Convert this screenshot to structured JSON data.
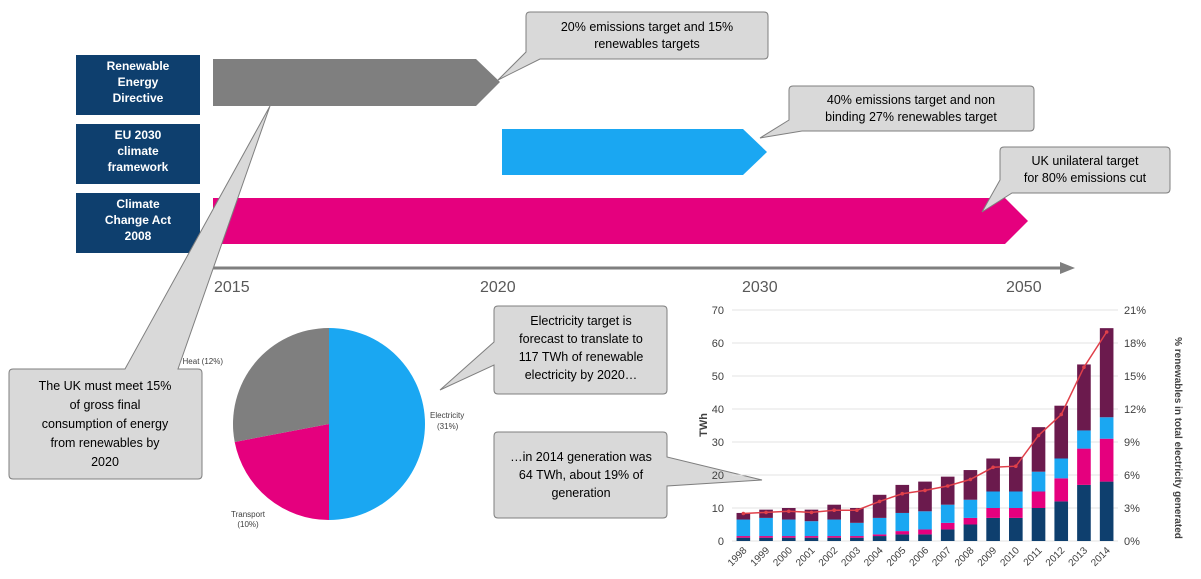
{
  "timeline": {
    "rows": [
      {
        "label": [
          "Renewable",
          "Energy",
          "Directive"
        ],
        "start_year": 2015,
        "end_year": 2020,
        "color": "#7f7f7f"
      },
      {
        "label": [
          "EU 2030",
          "climate",
          "framework"
        ],
        "start_year": 2020,
        "end_year": 2030,
        "color": "#1aa7f2"
      },
      {
        "label": [
          "Climate",
          "Change Act",
          "2008"
        ],
        "start_year": 2015,
        "end_year": 2050,
        "color": "#e5007e"
      }
    ],
    "axis_labels": [
      "2015",
      "2020",
      "2030",
      "2050"
    ],
    "label_box_color": "#0e3f6e"
  },
  "callouts": {
    "red_target": [
      "20% emissions target and 15%",
      "renewables targets"
    ],
    "eu_target": [
      "40% emissions target and non",
      "binding 27% renewables target"
    ],
    "uk_target": [
      "UK unilateral target",
      "for 80% emissions cut"
    ],
    "uk_must_meet": [
      "The UK must meet 15%",
      "of gross final",
      "consumption of energy",
      "from renewables by",
      "2020"
    ],
    "electricity_target": [
      "Electricity target is",
      "forecast to translate to",
      "117 TWh of renewable",
      "electricity by 2020…"
    ],
    "generation_2014": [
      "…in 2014 generation was",
      "64 TWh, about 19% of",
      "generation"
    ]
  },
  "chart_data": [
    {
      "type": "pie",
      "slices": [
        {
          "label": "Electricity",
          "sub": "(31%)",
          "value": 50,
          "color": "#1aa7f2"
        },
        {
          "label": "Transport",
          "sub": "(10%)",
          "value": 22,
          "color": "#e5007e"
        },
        {
          "label": "Heat (12%)",
          "sub": "",
          "value": 28,
          "color": "#7f7f7f"
        }
      ]
    },
    {
      "type": "bar",
      "stacked": true,
      "categories": [
        "1998",
        "1999",
        "2000",
        "2001",
        "2002",
        "2003",
        "2004",
        "2005",
        "2006",
        "2007",
        "2008",
        "2009",
        "2010",
        "2011",
        "2012",
        "2013",
        "2014"
      ],
      "series": [
        {
          "color": "#0e3f6e",
          "values": [
            1,
            1,
            1,
            1,
            1,
            1,
            1.5,
            2,
            2,
            3.5,
            5,
            7,
            7,
            10,
            12,
            17,
            18
          ]
        },
        {
          "color": "#e5007e",
          "values": [
            0.5,
            0.5,
            0.5,
            0.5,
            0.5,
            0.5,
            0.5,
            1,
            1.5,
            2,
            2,
            3,
            3,
            5,
            7,
            11,
            13
          ]
        },
        {
          "color": "#1aa7f2",
          "values": [
            5,
            5.5,
            5,
            4.5,
            5,
            4,
            5,
            5.5,
            5.5,
            5.5,
            5.5,
            5,
            5,
            6,
            6,
            5.5,
            6.5
          ]
        },
        {
          "color": "#6b1a4d",
          "values": [
            2,
            2.5,
            3.5,
            3.5,
            4.5,
            4.5,
            7,
            8.5,
            9,
            8.5,
            9,
            10,
            10.5,
            13.5,
            16,
            20,
            27
          ]
        }
      ],
      "line": {
        "color": "#e0404a",
        "values": [
          2.5,
          2.6,
          2.7,
          2.6,
          2.8,
          2.8,
          3.6,
          4.3,
          4.6,
          5.0,
          5.6,
          6.7,
          6.8,
          9.6,
          11.5,
          15.8,
          19.0
        ]
      },
      "ylabel": "TWh",
      "y2label": "% renewables in total electricity generated",
      "ylim": [
        0,
        70
      ],
      "yticks": [
        0,
        10,
        20,
        30,
        40,
        50,
        60,
        70
      ],
      "y2lim": [
        0,
        21
      ],
      "y2ticks": [
        "0%",
        "3%",
        "6%",
        "9%",
        "12%",
        "15%",
        "18%",
        "21%"
      ],
      "grid": true
    }
  ]
}
